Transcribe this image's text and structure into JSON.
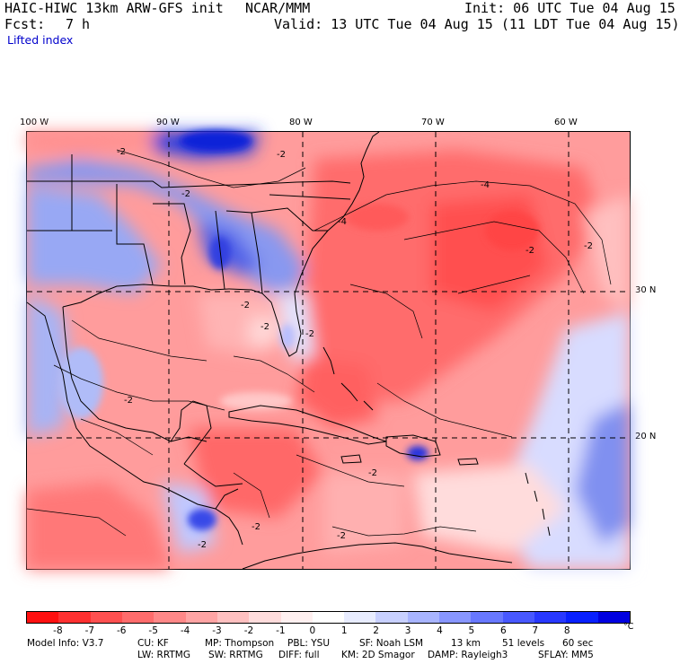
{
  "header": {
    "model": "HAIC-HIWC 13km ARW-GFS init",
    "org": "NCAR/MMM",
    "init": "Init: 06 UTC Tue 04 Aug 15",
    "fcst_label": "Fcst:",
    "fcst_value": "7 h",
    "valid": "Valid: 13 UTC Tue 04 Aug 15 (11 LDT Tue 04 Aug 15)",
    "field": "Lifted index"
  },
  "map": {
    "lon_labels": [
      "100 W",
      "90 W",
      "80 W",
      "70 W",
      "60 W"
    ],
    "lat_labels": [
      "30 N",
      "20 N"
    ],
    "contour_labels": [
      "-2",
      "-2",
      "-2",
      "-2",
      "-2",
      "-2",
      "-2",
      "-2",
      "-4",
      "-4",
      "-2",
      "-2",
      "-2",
      "-2",
      "-2"
    ]
  },
  "colorbar": {
    "labels": [
      "-8",
      "-7",
      "-6",
      "-5",
      "-4",
      "-3",
      "-2",
      "-1",
      "0",
      "1",
      "2",
      "3",
      "4",
      "5",
      "6",
      "7",
      "8"
    ],
    "unit": "°C",
    "colors": [
      "#ff1010",
      "#ff3030",
      "#ff5050",
      "#ff6c6c",
      "#ff8888",
      "#ffa4a4",
      "#ffc0c0",
      "#ffdcdc",
      "#fff0f0",
      "#ffffff",
      "#e8ecff",
      "#c8d0ff",
      "#a8b4ff",
      "#8896ff",
      "#6878ff",
      "#4858ff",
      "#2838ff",
      "#0820ff",
      "#0000e0"
    ]
  },
  "model_info": {
    "line1": [
      "Model Info: V3.7",
      "CU: KF",
      "MP: Thompson",
      "PBL: YSU",
      "SF: Noah LSM",
      "13 km",
      "51 levels",
      "60 sec"
    ],
    "line2": [
      "LW: RRTMG",
      "SW: RRTMG",
      "DIFF: full",
      "KM: 2D Smagor",
      "DAMP: Rayleigh3",
      "SFLAY: MM5"
    ]
  }
}
